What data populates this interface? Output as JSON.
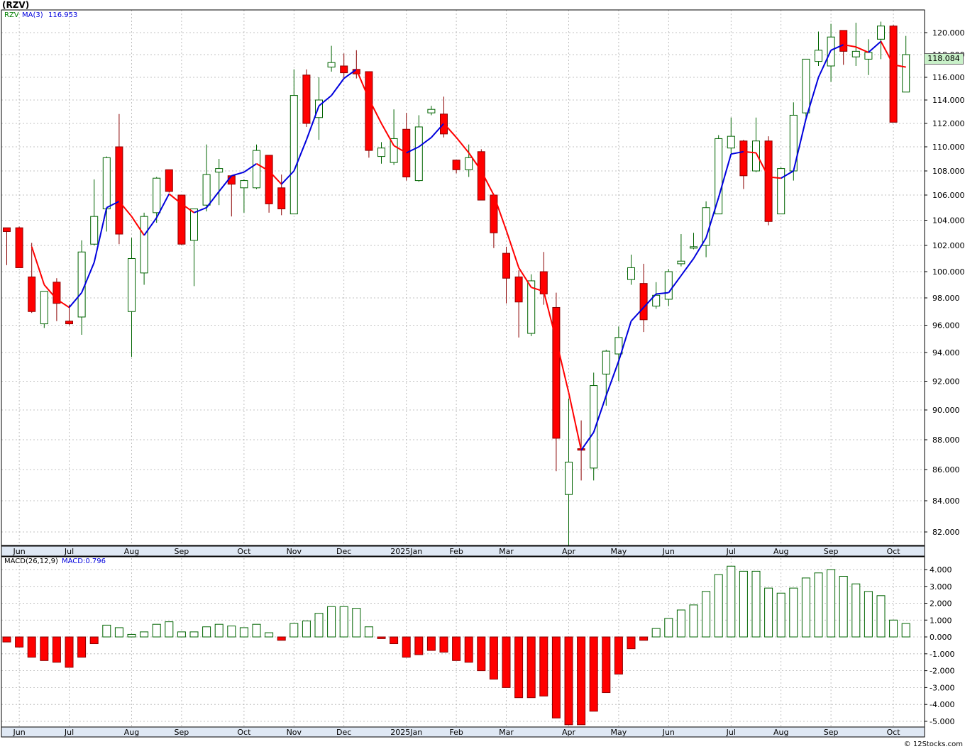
{
  "header": {
    "title": "(RZV)",
    "price_legend_symbol": "RZV",
    "price_legend_ma": "MA(3)",
    "price_legend_ma_value": "116.953",
    "macd_legend_name": "MACD(26,12,9)",
    "macd_legend_value": "MACD:0.796",
    "last_price_tag": "118.084",
    "footer": "© 12Stocks.com"
  },
  "colors": {
    "up_candle": "#ffffff",
    "up_outline": "#006400",
    "down_candle": "#ff0000",
    "ma_up": "#0000dd",
    "ma_down": "#ff0000",
    "macd_pos_fill": "#ffffff",
    "macd_pos_stroke": "#006400",
    "macd_neg_fill": "#ff0000",
    "grid": "#b0b0b0",
    "price_tag_bg": "#c8f0c8"
  },
  "chart_data": [
    {
      "type": "candlestick",
      "interval": "weekly",
      "y_axis_ticks": [
        "82.000",
        "84.000",
        "86.000",
        "88.000",
        "90.000",
        "92.000",
        "94.000",
        "96.000",
        "98.000",
        "100.000",
        "102.000",
        "104.000",
        "106.000",
        "108.000",
        "110.000",
        "112.000",
        "114.000",
        "116.000",
        "118.000",
        "120.000"
      ],
      "ylim": [
        81.2,
        121.8
      ],
      "x_axis_labels": [
        {
          "label": "Jun",
          "index": 1
        },
        {
          "label": "Jul",
          "index": 5
        },
        {
          "label": "Aug",
          "index": 10
        },
        {
          "label": "Sep",
          "index": 14
        },
        {
          "label": "Oct",
          "index": 19
        },
        {
          "label": "Nov",
          "index": 23
        },
        {
          "label": "Dec",
          "index": 27
        },
        {
          "label": "2025Jan",
          "index": 32
        },
        {
          "label": "Feb",
          "index": 36
        },
        {
          "label": "Mar",
          "index": 40
        },
        {
          "label": "Apr",
          "index": 45
        },
        {
          "label": "May",
          "index": 49
        },
        {
          "label": "Jun",
          "index": 53
        },
        {
          "label": "Jul",
          "index": 58
        },
        {
          "label": "Aug",
          "index": 62
        },
        {
          "label": "Sep",
          "index": 66
        },
        {
          "label": "Oct",
          "index": 71
        }
      ],
      "candles": [
        {
          "o": 103.4,
          "h": 103.4,
          "l": 100.5,
          "c": 103.1
        },
        {
          "o": 103.4,
          "h": 103.5,
          "l": 100.3,
          "c": 100.3
        },
        {
          "o": 99.6,
          "h": 102.2,
          "l": 96.9,
          "c": 97.0
        },
        {
          "o": 96.1,
          "h": 98.2,
          "l": 95.8,
          "c": 98.5
        },
        {
          "o": 99.2,
          "h": 99.5,
          "l": 96.3,
          "c": 97.6
        },
        {
          "o": 96.3,
          "h": 97.5,
          "l": 96.0,
          "c": 96.1
        },
        {
          "o": 96.6,
          "h": 102.4,
          "l": 95.3,
          "c": 101.5
        },
        {
          "o": 102.1,
          "h": 107.3,
          "l": 102.0,
          "c": 104.3
        },
        {
          "o": 104.9,
          "h": 109.2,
          "l": 103.1,
          "c": 109.1
        },
        {
          "o": 110.0,
          "h": 112.8,
          "l": 102.1,
          "c": 102.9
        },
        {
          "o": 97.0,
          "h": 102.6,
          "l": 93.7,
          "c": 101.0
        },
        {
          "o": 99.9,
          "h": 104.6,
          "l": 99.0,
          "c": 104.3
        },
        {
          "o": 104.6,
          "h": 107.5,
          "l": 103.8,
          "c": 107.4
        },
        {
          "o": 108.1,
          "h": 108.1,
          "l": 106.2,
          "c": 106.3
        },
        {
          "o": 106.0,
          "h": 106.0,
          "l": 102.0,
          "c": 102.1
        },
        {
          "o": 102.4,
          "h": 104.9,
          "l": 98.9,
          "c": 104.9
        },
        {
          "o": 105.2,
          "h": 110.2,
          "l": 104.7,
          "c": 107.7
        },
        {
          "o": 107.9,
          "h": 109.0,
          "l": 105.2,
          "c": 108.2
        },
        {
          "o": 107.6,
          "h": 107.6,
          "l": 104.3,
          "c": 106.9
        },
        {
          "o": 106.6,
          "h": 107.3,
          "l": 104.6,
          "c": 107.2
        },
        {
          "o": 106.6,
          "h": 110.2,
          "l": 106.5,
          "c": 109.7
        },
        {
          "o": 109.3,
          "h": 109.3,
          "l": 104.6,
          "c": 105.3
        },
        {
          "o": 106.6,
          "h": 107.7,
          "l": 104.4,
          "c": 104.9
        },
        {
          "o": 104.5,
          "h": 116.7,
          "l": 104.5,
          "c": 114.4
        },
        {
          "o": 116.2,
          "h": 116.7,
          "l": 111.7,
          "c": 112.0
        },
        {
          "o": 112.5,
          "h": 116.0,
          "l": 110.6,
          "c": 114.0
        },
        {
          "o": 116.9,
          "h": 118.8,
          "l": 116.5,
          "c": 117.3
        },
        {
          "o": 117.0,
          "h": 118.1,
          "l": 115.9,
          "c": 116.4
        },
        {
          "o": 116.7,
          "h": 118.4,
          "l": 115.9,
          "c": 116.3
        },
        {
          "o": 116.5,
          "h": 116.5,
          "l": 109.1,
          "c": 109.7
        },
        {
          "o": 109.2,
          "h": 110.4,
          "l": 108.6,
          "c": 109.9
        },
        {
          "o": 108.7,
          "h": 113.2,
          "l": 108.5,
          "c": 110.7
        },
        {
          "o": 111.5,
          "h": 112.9,
          "l": 107.2,
          "c": 107.5
        },
        {
          "o": 107.2,
          "h": 112.7,
          "l": 107.1,
          "c": 111.7
        },
        {
          "o": 112.9,
          "h": 113.5,
          "l": 112.7,
          "c": 113.2
        },
        {
          "o": 112.8,
          "h": 114.3,
          "l": 110.8,
          "c": 111.1
        },
        {
          "o": 108.9,
          "h": 108.9,
          "l": 107.8,
          "c": 108.1
        },
        {
          "o": 108.1,
          "h": 110.2,
          "l": 107.5,
          "c": 109.1
        },
        {
          "o": 109.6,
          "h": 109.8,
          "l": 105.7,
          "c": 105.6
        },
        {
          "o": 106.0,
          "h": 106.1,
          "l": 101.8,
          "c": 103.0
        },
        {
          "o": 101.4,
          "h": 101.9,
          "l": 97.6,
          "c": 99.5
        },
        {
          "o": 99.6,
          "h": 100.1,
          "l": 95.1,
          "c": 97.7
        },
        {
          "o": 95.4,
          "h": 99.8,
          "l": 95.2,
          "c": 99.3
        },
        {
          "o": 100.0,
          "h": 101.5,
          "l": 97.5,
          "c": 98.3
        },
        {
          "o": 97.3,
          "h": 98.4,
          "l": 85.9,
          "c": 88.1
        },
        {
          "o": 84.4,
          "h": 90.8,
          "l": 81.1,
          "c": 86.5
        },
        {
          "o": 87.4,
          "h": 89.3,
          "l": 85.3,
          "c": 87.3
        },
        {
          "o": 86.1,
          "h": 92.6,
          "l": 85.3,
          "c": 91.7
        },
        {
          "o": 92.5,
          "h": 94.2,
          "l": 90.3,
          "c": 94.1
        },
        {
          "o": 93.9,
          "h": 95.9,
          "l": 92.0,
          "c": 95.1
        },
        {
          "o": 99.4,
          "h": 101.3,
          "l": 99.0,
          "c": 100.3
        },
        {
          "o": 99.1,
          "h": 100.6,
          "l": 95.5,
          "c": 96.4
        },
        {
          "o": 97.4,
          "h": 99.2,
          "l": 97.2,
          "c": 98.2
        },
        {
          "o": 97.9,
          "h": 100.2,
          "l": 97.4,
          "c": 100.0
        },
        {
          "o": 100.6,
          "h": 102.9,
          "l": 100.4,
          "c": 100.8
        },
        {
          "o": 101.8,
          "h": 103.0,
          "l": 101.7,
          "c": 101.9
        },
        {
          "o": 102.0,
          "h": 105.5,
          "l": 101.1,
          "c": 105.0
        },
        {
          "o": 104.5,
          "h": 111.0,
          "l": 104.5,
          "c": 110.7
        },
        {
          "o": 109.9,
          "h": 112.5,
          "l": 109.4,
          "c": 110.9
        },
        {
          "o": 110.5,
          "h": 110.6,
          "l": 106.5,
          "c": 107.6
        },
        {
          "o": 108.0,
          "h": 112.5,
          "l": 107.9,
          "c": 110.5
        },
        {
          "o": 110.5,
          "h": 110.9,
          "l": 103.6,
          "c": 103.9
        },
        {
          "o": 104.5,
          "h": 108.3,
          "l": 104.5,
          "c": 108.2
        },
        {
          "o": 108.0,
          "h": 113.8,
          "l": 107.2,
          "c": 112.7
        },
        {
          "o": 112.9,
          "h": 117.4,
          "l": 112.5,
          "c": 117.6
        },
        {
          "o": 117.4,
          "h": 120.1,
          "l": 117.0,
          "c": 118.4
        },
        {
          "o": 117.0,
          "h": 120.8,
          "l": 115.6,
          "c": 119.6
        },
        {
          "o": 120.2,
          "h": 120.2,
          "l": 117.1,
          "c": 118.3
        },
        {
          "o": 117.8,
          "h": 120.9,
          "l": 117.0,
          "c": 118.3
        },
        {
          "o": 117.6,
          "h": 119.4,
          "l": 116.2,
          "c": 118.2
        },
        {
          "o": 119.4,
          "h": 121.0,
          "l": 117.6,
          "c": 120.6
        },
        {
          "o": 120.6,
          "h": 120.7,
          "l": 112.1,
          "c": 112.1
        },
        {
          "o": 114.7,
          "h": 119.7,
          "l": 114.7,
          "c": 118.0
        }
      ],
      "ma3": [
        null,
        null,
        101.9,
        99.0,
        97.9,
        97.3,
        98.4,
        100.7,
        105.0,
        105.5,
        104.3,
        102.8,
        104.2,
        106.1,
        105.3,
        104.6,
        105.0,
        106.3,
        107.6,
        107.9,
        108.6,
        108.0,
        106.9,
        108.0,
        110.6,
        113.5,
        114.4,
        115.9,
        116.7,
        114.1,
        112.0,
        110.1,
        109.5,
        110.0,
        110.8,
        112.0,
        110.8,
        109.5,
        108.0,
        106.0,
        103.2,
        100.3,
        98.8,
        98.5,
        94.9,
        91.2,
        87.3,
        88.5,
        91.0,
        93.4,
        96.3,
        97.3,
        98.3,
        98.4,
        99.7,
        101.0,
        102.6,
        105.8,
        109.4,
        109.6,
        109.5,
        107.5,
        107.4,
        108.0,
        112.4,
        116.0,
        118.4,
        118.9,
        118.7,
        118.2,
        119.2,
        117.1,
        116.9
      ],
      "ma3_last": 116.953
    },
    {
      "type": "bar",
      "name": "MACD(26,12,9)",
      "y_axis_ticks": [
        "-5.000",
        "-4.000",
        "-3.000",
        "-2.000",
        "-1.000",
        "0.000",
        "1.000",
        "2.000",
        "3.000",
        "4.000"
      ],
      "ylim": [
        -5.4,
        4.5
      ],
      "values": [
        -0.3,
        -0.6,
        -1.2,
        -1.4,
        -1.5,
        -1.8,
        -1.2,
        -0.4,
        0.7,
        0.55,
        0.15,
        0.3,
        0.75,
        0.9,
        0.3,
        0.3,
        0.6,
        0.75,
        0.65,
        0.55,
        0.75,
        0.25,
        -0.2,
        0.8,
        0.95,
        1.4,
        1.8,
        1.8,
        1.7,
        0.6,
        -0.1,
        -0.4,
        -1.2,
        -1.05,
        -0.8,
        -0.9,
        -1.4,
        -1.5,
        -2.0,
        -2.5,
        -3.0,
        -3.6,
        -3.6,
        -3.5,
        -4.8,
        -5.2,
        -5.2,
        -4.4,
        -3.3,
        -2.2,
        -0.7,
        -0.2,
        0.5,
        1.1,
        1.6,
        1.9,
        2.7,
        3.7,
        4.2,
        3.9,
        3.9,
        2.9,
        2.6,
        2.9,
        3.5,
        3.8,
        4.0,
        3.6,
        3.15,
        2.7,
        2.45,
        1.0,
        0.796
      ],
      "last_value": 0.796
    }
  ]
}
